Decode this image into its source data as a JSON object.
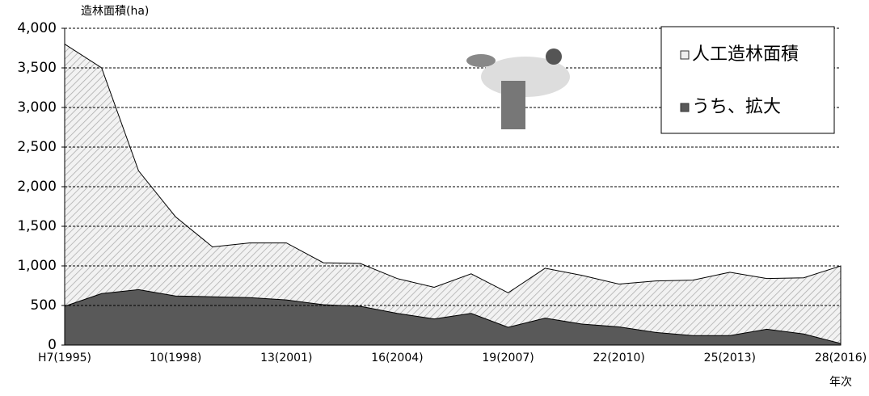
{
  "chart_data": {
    "type": "area",
    "y_axis_title": "造林面積(ha)",
    "x_axis_title": "年次",
    "categories": [
      "H7(1995)",
      null,
      null,
      "10(1998)",
      null,
      null,
      "13(2001)",
      null,
      null,
      "16(2004)",
      null,
      null,
      "19(2007)",
      null,
      null,
      "22(2010)",
      null,
      null,
      "25(2013)",
      null,
      null,
      "28(2016)"
    ],
    "series": [
      {
        "name": "人工造林面積",
        "color": "#d9d9d9",
        "hatch": true,
        "values": [
          3800,
          3500,
          2200,
          1620,
          1240,
          1290,
          1290,
          1040,
          1030,
          840,
          730,
          900,
          660,
          970,
          880,
          770,
          810,
          820,
          920,
          840,
          850,
          1000
        ]
      },
      {
        "name": "うち、拡大",
        "color": "#595959",
        "hatch": false,
        "values": [
          490,
          650,
          700,
          620,
          610,
          600,
          570,
          510,
          490,
          400,
          330,
          400,
          225,
          340,
          265,
          230,
          160,
          120,
          120,
          200,
          140,
          20
        ]
      }
    ],
    "ylim": [
      0,
      4000
    ],
    "yticks": [
      0,
      500,
      {
        "value": 1000,
        "label": "1,000"
      },
      {
        "value": 1500,
        "label": "1,500"
      },
      {
        "value": 2000,
        "label": "2,000"
      },
      {
        "value": 2500,
        "label": "2,500"
      },
      {
        "value": 3000,
        "label": "3,000"
      },
      {
        "value": 3500,
        "label": "3,500"
      },
      {
        "value": 4000,
        "label": "4,000"
      }
    ],
    "grid": true,
    "legend": "top-right"
  }
}
